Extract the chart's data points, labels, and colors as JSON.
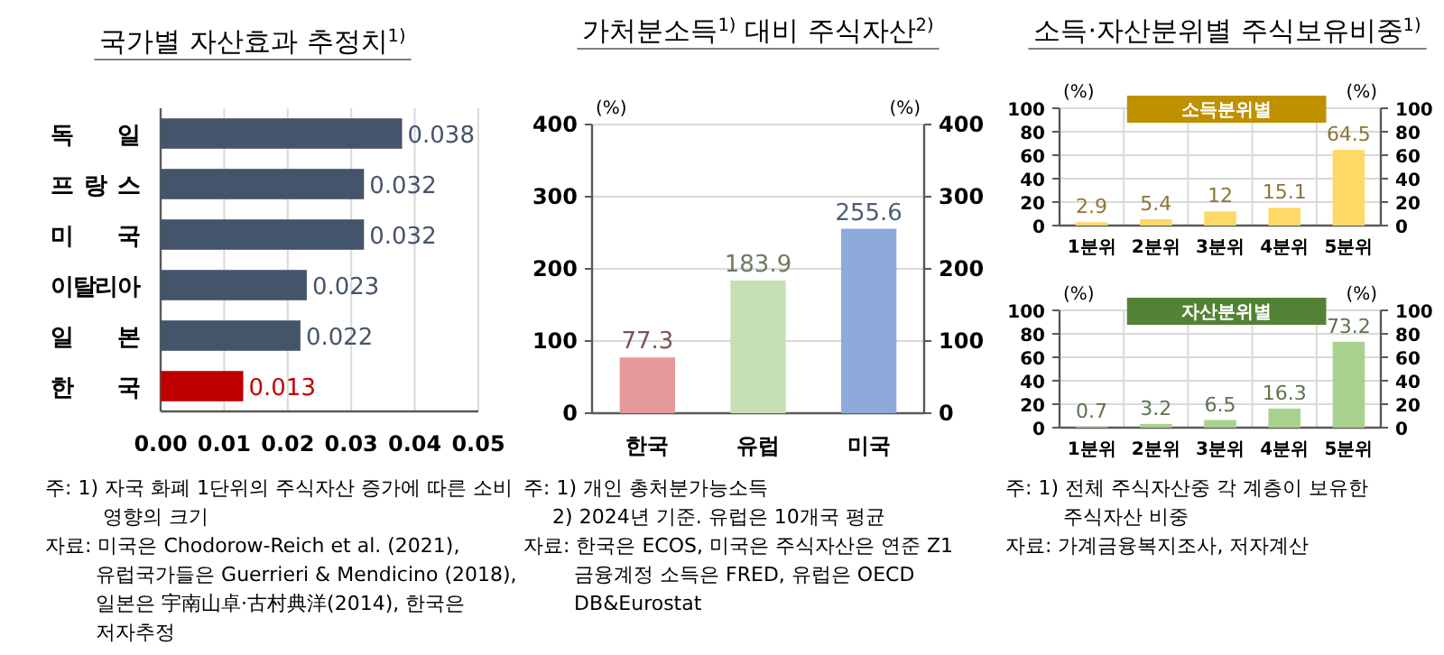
{
  "chart_data": [
    {
      "type": "bar",
      "title": "국가별 자산효과 추정치$^{1)}$",
      "orientation": "horizontal",
      "categories": [
        "독일",
        "프랑스",
        "미국",
        "이탈리아",
        "일본",
        "한국"
      ],
      "values": [
        0.038,
        0.032,
        0.032,
        0.023,
        0.022,
        0.013
      ],
      "colors": [
        "#44546a",
        "#44546a",
        "#44546a",
        "#44546a",
        "#44546a",
        "#c00000"
      ],
      "xlim": [
        0,
        0.05
      ],
      "xticks": [
        {
          "value": 0,
          "label": "0.00"
        },
        {
          "value": 0.01,
          "label": "0.01"
        },
        {
          "value": 0.02,
          "label": "0.02"
        },
        {
          "value": 0.03,
          "label": "0.03"
        },
        {
          "value": 0.04,
          "label": "0.04"
        },
        {
          "value": 0.05,
          "label": "0.05"
        }
      ],
      "grid": "x",
      "data_labels": true,
      "annotations": [
        "주: 1) 자국 화폐 1단위의 주식자산 증가에 따른 소비 영향의 크기",
        "자료: 미국은 Chodorow-Reich et al. (2021), 유럽국가들은 Guerrieri & Mendicino (2018), 일본은 宇南山卓·古村典洋(2014), 한국은 저자추정"
      ]
    },
    {
      "type": "bar",
      "title": "가처분소득$^{1)}$ 대비 주식자산$^{2)}$",
      "categories": [
        "한국",
        "유럽",
        "미국"
      ],
      "values": [
        77.3,
        183.9,
        255.6
      ],
      "colors": [
        "#e6999a",
        "#c6e0b4",
        "#8eaadb"
      ],
      "ylim": [
        0,
        400
      ],
      "yticks": [
        0,
        100,
        200,
        300,
        400
      ],
      "y2lim": [
        0,
        400
      ],
      "y2ticks": [
        0,
        100,
        200,
        300,
        400
      ],
      "ylabel": "(%)",
      "y2label": "(%)",
      "grid": "y",
      "data_labels": true,
      "annotations": [
        "주: 1) 개인 총처분가능소득",
        "2) 2024년 기준. 유럽은 10개국 평균",
        "자료: 한국은 ECOS, 미국은 주식자산은 연준 Z1 금융계정 소득은 FRED, 유럽은 OECD DB&Eurostat"
      ]
    },
    {
      "type": "bar",
      "title": "소득·자산분위별 주식보유비중$^{1)}$",
      "subtitle": "소득분위별",
      "categories": [
        "1분위",
        "2분위",
        "3분위",
        "4분위",
        "5분위"
      ],
      "values": [
        2.9,
        5.4,
        12,
        15.1,
        64.5
      ],
      "color": "#ffd966",
      "ylim": [
        0,
        100
      ],
      "yticks": [
        0,
        20,
        40,
        60,
        80,
        100
      ],
      "y2lim": [
        0,
        100
      ],
      "y2ticks": [
        0,
        20,
        40,
        60,
        80,
        100
      ],
      "ylabel": "(%)",
      "y2label": "(%)",
      "grid": true,
      "data_labels": true,
      "annotations": [
        "주: 1) 전체 주식자산중 각 계층이 보유한 주식자산 비중",
        "자료: 가계금융복지조사, 저자계산"
      ]
    },
    {
      "type": "bar",
      "subtitle": "자산분위별",
      "categories": [
        "1분위",
        "2분위",
        "3분위",
        "4분위",
        "5분위"
      ],
      "values": [
        0.7,
        3.2,
        6.5,
        16.3,
        73.2
      ],
      "color": "#a9d18e",
      "ylim": [
        0,
        100
      ],
      "yticks": [
        0,
        20,
        40,
        60,
        80,
        100
      ],
      "y2lim": [
        0,
        100
      ],
      "y2ticks": [
        0,
        20,
        40,
        60,
        80,
        100
      ],
      "ylabel": "(%)",
      "y2label": "(%)",
      "grid": true,
      "data_labels": true
    }
  ]
}
